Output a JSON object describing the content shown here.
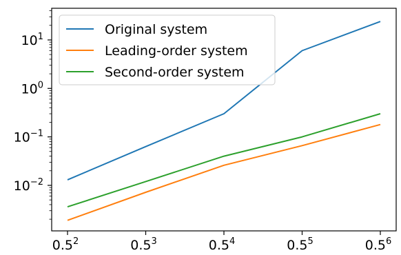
{
  "chart_data": {
    "type": "line",
    "title": "",
    "xlabel": "",
    "ylabel": "",
    "x_scale": "log",
    "y_scale": "log",
    "x_ticks": [
      {
        "base": "0.5",
        "exp": "2"
      },
      {
        "base": "0.5",
        "exp": "3"
      },
      {
        "base": "0.5",
        "exp": "4"
      },
      {
        "base": "0.5",
        "exp": "5"
      },
      {
        "base": "0.5",
        "exp": "6"
      }
    ],
    "y_ticks": [
      {
        "base": "10",
        "exp": "−2"
      },
      {
        "base": "10",
        "exp": "−1"
      },
      {
        "base": "10",
        "exp": "0"
      },
      {
        "base": "10",
        "exp": "1"
      }
    ],
    "x": [
      0.25,
      0.125,
      0.0625,
      0.03125,
      0.015625
    ],
    "xlim": [
      0.25,
      0.015625
    ],
    "ylim": [
      0.00115,
      45
    ],
    "grid": false,
    "legend_position": "top-left",
    "series": [
      {
        "name": "Original system",
        "color": "#1f77b4",
        "values": [
          0.013,
          0.063,
          0.3,
          6.0,
          24.0
        ]
      },
      {
        "name": "Leading-order system",
        "color": "#ff7f0e",
        "values": [
          0.0019,
          0.0072,
          0.026,
          0.066,
          0.18
        ]
      },
      {
        "name": "Second-order system",
        "color": "#2ca02c",
        "values": [
          0.0036,
          0.012,
          0.04,
          0.1,
          0.3
        ]
      }
    ]
  }
}
